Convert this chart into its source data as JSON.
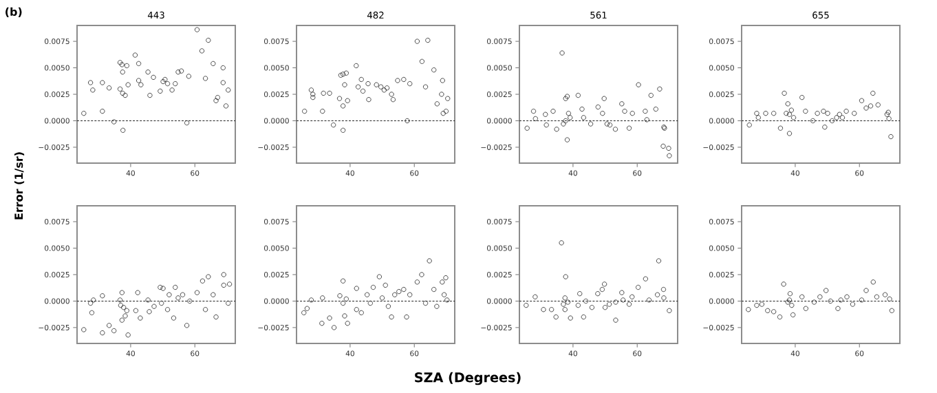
{
  "chart_data": [
    {
      "type": "scatter",
      "title": "443",
      "ylabel": "Error (1/sr)",
      "annotations": [
        "(b)"
      ],
      "color": "#222222",
      "marker": "circle",
      "xlim": [
        23.3,
        72.6
      ],
      "ylim": [
        -0.004,
        0.009
      ],
      "xticks": [
        40,
        60
      ],
      "yticks": [
        {
          "value": -0.0025,
          "label": "−0.0025"
        },
        {
          "value": 0,
          "label": "0.0000"
        },
        {
          "value": 0.0025,
          "label": "0.0025"
        },
        {
          "value": 0.005,
          "label": "0.0050"
        },
        {
          "value": 0.0075,
          "label": "0.0075"
        }
      ],
      "ref_lines": [
        {
          "axis": "y",
          "value": 0,
          "line_style": "dashed",
          "color": "#222222"
        }
      ],
      "x": [
        25.4,
        27.5,
        28.2,
        31.2,
        31.2,
        33.3,
        34.8,
        36.7,
        37.3,
        38.8,
        37.5,
        36.7,
        37.5,
        38.3,
        39.2,
        37.6,
        41.4,
        42.5,
        42.5,
        43.2,
        45.4,
        46.0,
        47.1,
        49.2,
        50.1,
        50.7,
        51.5,
        52.9,
        53.9,
        54.8,
        55.8,
        58.1,
        57.5,
        60.7,
        62.2,
        63.3,
        64.2,
        65.7,
        68.8,
        68.8,
        66.6,
        67.1,
        70.4,
        69.7
      ],
      "values": [
        0.0007,
        0.0036,
        0.0029,
        0.0036,
        0.0009,
        0.0031,
        -0.0001,
        0.0055,
        0.0053,
        0.0052,
        0.0046,
        0.003,
        0.0026,
        0.0024,
        0.0034,
        -0.0009,
        0.0062,
        0.0054,
        0.0038,
        0.0034,
        0.0046,
        0.0024,
        0.0041,
        0.0028,
        0.0037,
        0.0039,
        0.0035,
        0.0029,
        0.0035,
        0.0046,
        0.0047,
        0.0042,
        -0.0002,
        0.0086,
        0.0066,
        0.004,
        0.0076,
        0.0054,
        0.005,
        0.0036,
        0.0019,
        0.0022,
        0.0029,
        0.0014
      ]
    },
    {
      "type": "scatter",
      "title": "482",
      "color": "#222222",
      "marker": "circle",
      "xlim": [
        23.3,
        72.6
      ],
      "ylim": [
        -0.004,
        0.009
      ],
      "xticks": [
        40,
        60
      ],
      "yticks": [
        {
          "value": -0.0025,
          "label": "−0.0025"
        },
        {
          "value": 0,
          "label": "0.0000"
        },
        {
          "value": 0.0025,
          "label": "0.0025"
        },
        {
          "value": 0.005,
          "label": "0.0050"
        },
        {
          "value": 0.0075,
          "label": "0.0075"
        }
      ],
      "ref_lines": [
        {
          "axis": "y",
          "value": 0,
          "line_style": "dashed",
          "color": "#222222"
        }
      ],
      "x": [
        25.8,
        27.9,
        28.4,
        28.4,
        31.7,
        31.4,
        33.6,
        34.8,
        37.8,
        37.1,
        37.8,
        38.8,
        36.7,
        37.8,
        39.2,
        38.3,
        41.9,
        42.5,
        43.5,
        44.0,
        45.8,
        45.6,
        48.2,
        49.6,
        50.6,
        51.5,
        52.9,
        53.4,
        54.8,
        56.7,
        58.6,
        57.8,
        60.9,
        64.2,
        62.4,
        63.5,
        66.1,
        68.8,
        67.1,
        68.5,
        70.4,
        69.9,
        69.0
      ],
      "values": [
        0.0009,
        0.0029,
        0.0025,
        0.0022,
        0.0026,
        0.0009,
        0.0026,
        -0.0004,
        -0.0009,
        0.0043,
        0.0044,
        0.0045,
        0.0021,
        0.0014,
        0.0019,
        0.0034,
        0.0052,
        0.0032,
        0.0039,
        0.0028,
        0.002,
        0.0035,
        0.0034,
        0.0032,
        0.0029,
        0.0031,
        0.0025,
        0.002,
        0.0038,
        0.0039,
        0.0035,
        0.0,
        0.0075,
        0.0076,
        0.0056,
        0.0032,
        0.0048,
        0.0038,
        0.0016,
        0.0025,
        0.0021,
        0.0009,
        0.0007
      ]
    },
    {
      "type": "scatter",
      "title": "561",
      "color": "#222222",
      "marker": "circle",
      "xlim": [
        23.3,
        72.6
      ],
      "ylim": [
        -0.004,
        0.009
      ],
      "xticks": [
        40,
        60
      ],
      "yticks": [
        {
          "value": -0.0025,
          "label": "−0.0025"
        },
        {
          "value": 0,
          "label": "0.0000"
        },
        {
          "value": 0.0025,
          "label": "0.0025"
        },
        {
          "value": 0.005,
          "label": "0.0050"
        },
        {
          "value": 0.0075,
          "label": "0.0075"
        }
      ],
      "ref_lines": [
        {
          "axis": "y",
          "value": 0,
          "line_style": "dashed",
          "color": "#222222"
        }
      ],
      "x": [
        25.7,
        27.7,
        28.3,
        31.4,
        31.7,
        33.8,
        34.9,
        36.6,
        37.0,
        37.7,
        38.2,
        38.6,
        39.1,
        37.7,
        38.2,
        41.6,
        42.8,
        43.3,
        45.5,
        47.8,
        49.7,
        49.2,
        50.6,
        51.5,
        53.2,
        55.2,
        56.1,
        57.5,
        58.5,
        60.4,
        62.5,
        63.0,
        64.3,
        65.8,
        67.0,
        68.3,
        68.5,
        68.1,
        69.8,
        70.0
      ],
      "values": [
        -0.0007,
        0.0009,
        0.0002,
        0.0006,
        -0.0004,
        0.0009,
        -0.0008,
        0.0064,
        -0.0003,
        0.0021,
        0.0023,
        0.0007,
        0.0003,
        0.0,
        -0.0018,
        0.0024,
        0.0011,
        0.0003,
        -0.0003,
        0.0013,
        0.0021,
        0.0007,
        -0.0003,
        -0.0004,
        -0.0008,
        0.0016,
        0.0009,
        -0.0007,
        0.0007,
        0.0034,
        0.0009,
        0.0001,
        0.0024,
        0.0011,
        0.003,
        -0.0006,
        -0.0007,
        -0.0024,
        -0.0026,
        -0.0033
      ]
    },
    {
      "type": "scatter",
      "title": "655",
      "color": "#222222",
      "marker": "circle",
      "xlim": [
        23.3,
        72.6
      ],
      "ylim": [
        -0.004,
        0.009
      ],
      "xticks": [
        40,
        60
      ],
      "yticks": [
        {
          "value": -0.0025,
          "label": "−0.0025"
        },
        {
          "value": 0,
          "label": "0.0000"
        },
        {
          "value": 0.0025,
          "label": "0.0025"
        },
        {
          "value": 0.005,
          "label": "0.0050"
        },
        {
          "value": 0.0075,
          "label": "0.0075"
        }
      ],
      "ref_lines": [
        {
          "axis": "y",
          "value": 0,
          "line_style": "dashed",
          "color": "#222222"
        }
      ],
      "x": [
        25.7,
        28.0,
        28.5,
        30.8,
        33.3,
        35.4,
        38.2,
        36.6,
        37.2,
        38.2,
        38.8,
        37.7,
        39.5,
        42.1,
        43.2,
        45.5,
        46.9,
        48.8,
        49.2,
        50.1,
        51.5,
        52.9,
        53.8,
        54.7,
        55.9,
        58.4,
        60.7,
        62.1,
        63.5,
        64.2,
        65.8,
        68.6,
        69.0,
        69.8,
        69.2
      ],
      "values": [
        -0.0004,
        0.0007,
        0.0003,
        0.0007,
        0.0007,
        -0.0007,
        -0.0012,
        0.0026,
        0.0007,
        0.0006,
        0.001,
        0.0016,
        0.0003,
        0.0022,
        0.0009,
        0.0,
        0.0007,
        0.0009,
        -0.0006,
        0.0007,
        0.0,
        0.0003,
        0.0006,
        0.0003,
        0.0009,
        0.0007,
        0.0019,
        0.0012,
        0.0014,
        0.0026,
        0.0015,
        0.0006,
        0.0008,
        -0.0015,
        0.0002
      ]
    },
    {
      "type": "scatter",
      "color": "#222222",
      "marker": "circle",
      "xlim": [
        23.3,
        72.6
      ],
      "ylim": [
        -0.004,
        0.009
      ],
      "xticks": [
        40,
        60
      ],
      "yticks": [
        {
          "value": -0.0025,
          "label": "−0.0025"
        },
        {
          "value": 0,
          "label": "0.0000"
        },
        {
          "value": 0.0025,
          "label": "0.0025"
        },
        {
          "value": 0.005,
          "label": "0.0050"
        },
        {
          "value": 0.0075,
          "label": "0.0075"
        }
      ],
      "ref_lines": [
        {
          "axis": "y",
          "value": 0,
          "line_style": "dashed",
          "color": "#222222"
        }
      ],
      "x": [
        25.4,
        27.5,
        27.9,
        28.4,
        31.2,
        31.2,
        33.3,
        34.8,
        36.7,
        37.3,
        36.9,
        37.8,
        37.3,
        38.3,
        39.2,
        38.8,
        42.2,
        41.6,
        43.0,
        45.4,
        45.8,
        47.3,
        49.2,
        50.1,
        49.6,
        51.5,
        52.0,
        53.4,
        53.9,
        54.8,
        56.2,
        57.5,
        58.4,
        60.7,
        62.4,
        64.2,
        63.3,
        65.7,
        66.6,
        69.0,
        69.0,
        70.4,
        70.8
      ],
      "values": [
        -0.0027,
        -0.0002,
        -0.0011,
        0.0001,
        0.0005,
        -0.003,
        -0.0023,
        -0.0028,
        0.0001,
        0.0008,
        -0.0004,
        -0.0006,
        -0.0018,
        -0.0014,
        -0.0032,
        -0.0009,
        0.0008,
        -0.0009,
        -0.0016,
        0.0001,
        -0.001,
        -0.0005,
        0.0013,
        0.0012,
        -0.0002,
        -0.0008,
        0.0006,
        -0.0016,
        0.0013,
        0.0003,
        0.0006,
        -0.0023,
        0.0,
        0.0008,
        0.0019,
        0.0023,
        -0.0008,
        0.0006,
        -0.0015,
        0.0025,
        0.0015,
        -0.0002,
        0.0016
      ]
    },
    {
      "type": "scatter",
      "color": "#222222",
      "marker": "circle",
      "xlim": [
        23.3,
        72.6
      ],
      "ylim": [
        -0.004,
        0.009
      ],
      "xticks": [
        40,
        60
      ],
      "yticks": [
        {
          "value": -0.0025,
          "label": "−0.0025"
        },
        {
          "value": 0,
          "label": "0.0000"
        },
        {
          "value": 0.0025,
          "label": "0.0025"
        },
        {
          "value": 0.005,
          "label": "0.0050"
        },
        {
          "value": 0.0075,
          "label": "0.0075"
        }
      ],
      "ref_lines": [
        {
          "axis": "y",
          "value": 0,
          "line_style": "dashed",
          "color": "#222222"
        }
      ],
      "x": [
        25.6,
        26.6,
        27.9,
        31.4,
        31.2,
        33.6,
        35.0,
        37.8,
        36.8,
        37.8,
        38.8,
        38.3,
        39.2,
        42.0,
        42.0,
        43.5,
        45.3,
        46.3,
        47.2,
        49.1,
        50.0,
        51.0,
        51.9,
        52.9,
        53.9,
        55.2,
        56.7,
        57.6,
        58.6,
        60.9,
        62.3,
        63.5,
        64.7,
        66.1,
        67.0,
        68.7,
        69.8,
        69.3,
        70.2
      ],
      "xlabel": "SZA (Degrees)",
      "values": [
        -0.0011,
        -0.0007,
        0.0001,
        0.0003,
        -0.0021,
        -0.0016,
        -0.0025,
        0.0019,
        0.0005,
        -0.0002,
        0.0002,
        -0.0014,
        -0.0021,
        0.0012,
        -0.0008,
        -0.0011,
        0.0006,
        -0.0002,
        0.0013,
        0.0023,
        0.0003,
        0.0015,
        -0.0005,
        -0.0015,
        0.0006,
        0.0009,
        0.0011,
        -0.0015,
        0.0006,
        0.0018,
        0.0025,
        -0.0002,
        0.0038,
        0.0011,
        -0.0005,
        0.0018,
        0.0022,
        0.0006,
        0.0001
      ]
    },
    {
      "type": "scatter",
      "color": "#222222",
      "marker": "circle",
      "xlim": [
        23.3,
        72.6
      ],
      "ylim": [
        -0.004,
        0.009
      ],
      "xticks": [
        40,
        60
      ],
      "yticks": [
        {
          "value": -0.0025,
          "label": "−0.0025"
        },
        {
          "value": 0,
          "label": "0.0000"
        },
        {
          "value": 0.0025,
          "label": "0.0025"
        },
        {
          "value": 0.005,
          "label": "0.0050"
        },
        {
          "value": 0.0075,
          "label": "0.0075"
        }
      ],
      "ref_lines": [
        {
          "axis": "y",
          "value": 0,
          "line_style": "dashed",
          "color": "#222222"
        }
      ],
      "x": [
        25.4,
        28.2,
        30.8,
        33.3,
        34.7,
        36.4,
        37.7,
        37.5,
        37.0,
        38.4,
        37.5,
        39.2,
        42.1,
        41.6,
        43.3,
        44.0,
        45.9,
        47.7,
        49.8,
        49.1,
        50.0,
        51.3,
        53.3,
        53.3,
        55.2,
        55.6,
        57.5,
        58.4,
        60.3,
        62.6,
        63.7,
        66.3,
        66.7,
        68.2,
        68.3,
        70.0
      ],
      "values": [
        -0.0004,
        0.0004,
        -0.0008,
        -0.0008,
        -0.0015,
        0.0055,
        0.0023,
        0.0003,
        -0.0003,
        -0.0001,
        -0.0008,
        -0.0016,
        0.0007,
        -0.0004,
        -0.0015,
        0.0,
        -0.0006,
        0.0007,
        0.0016,
        0.0011,
        -0.0006,
        -0.0003,
        -0.0018,
        -0.0001,
        0.0008,
        0.0001,
        -0.0003,
        0.0004,
        0.0013,
        0.0021,
        0.0001,
        0.0006,
        0.0038,
        0.0011,
        0.0003,
        -0.0009
      ]
    },
    {
      "type": "scatter",
      "color": "#222222",
      "marker": "circle",
      "xlim": [
        23.3,
        72.6
      ],
      "ylim": [
        -0.004,
        0.009
      ],
      "xticks": [
        40,
        60
      ],
      "yticks": [
        {
          "value": -0.0025,
          "label": "−0.0025"
        },
        {
          "value": 0,
          "label": "0.0000"
        },
        {
          "value": 0.0025,
          "label": "0.0025"
        },
        {
          "value": 0.005,
          "label": "0.0050"
        },
        {
          "value": 0.0075,
          "label": "0.0075"
        }
      ],
      "ref_lines": [
        {
          "axis": "y",
          "value": 0,
          "line_style": "dashed",
          "color": "#222222"
        }
      ],
      "x": [
        25.4,
        28.0,
        29.6,
        31.4,
        33.3,
        35.2,
        36.4,
        37.7,
        38.2,
        38.9,
        39.3,
        38.4,
        42.1,
        43.3,
        45.9,
        47.7,
        49.6,
        51.0,
        53.3,
        54.2,
        56.1,
        57.9,
        60.7,
        62.1,
        64.3,
        65.4,
        68.0,
        69.4,
        70.1
      ],
      "values": [
        -0.0008,
        -0.0004,
        -0.0003,
        -0.0009,
        -0.001,
        -0.0015,
        0.0016,
        -0.0001,
        0.0001,
        -0.0004,
        -0.0013,
        0.0007,
        0.0004,
        -0.0007,
        -0.0001,
        0.0004,
        0.001,
        0.0,
        -0.0007,
        0.0001,
        0.0004,
        -0.0003,
        0.0001,
        0.001,
        0.0018,
        0.0004,
        0.0006,
        0.0002,
        -0.0009
      ]
    }
  ]
}
